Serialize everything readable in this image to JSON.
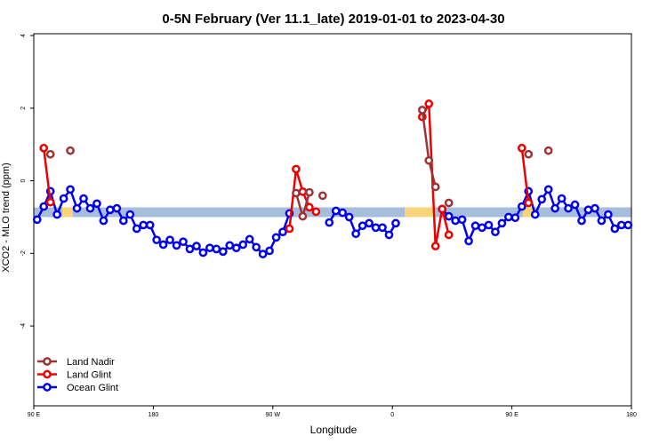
{
  "chart_data": {
    "type": "line",
    "title": "0-5N February (Ver 11.1_late)   2019-01-01 to 2023-04-30",
    "x_label": "Longitude",
    "y_label": "XCO2 - MLO trend (ppm)",
    "xlim": [
      90,
      540
    ],
    "ylim": [
      -6.2,
      4.05
    ],
    "xticks": [
      {
        "value": 90,
        "label": "90 E"
      },
      180,
      {
        "value": 270,
        "label": "90 W"
      },
      {
        "value": 360,
        "label": "0"
      },
      {
        "value": 450,
        "label": "90 E"
      },
      {
        "value": 540,
        "label": "180"
      }
    ],
    "yticks": [
      -4,
      -2,
      0,
      2,
      4
    ],
    "legend": "bottomleft",
    "x": [
      92.5,
      97.5,
      102.5,
      107.5,
      112.5,
      117.5,
      122.5,
      127.5,
      132.5,
      137.5,
      142.5,
      147.5,
      152.5,
      157.5,
      162.5,
      167.5,
      172.5,
      177.5,
      182.5,
      187.5,
      192.5,
      197.5,
      202.5,
      207.5,
      212.5,
      217.5,
      222.5,
      227.5,
      232.5,
      237.5,
      242.5,
      247.5,
      252.5,
      257.5,
      262.5,
      267.5,
      272.5,
      277.5,
      282.5,
      287.5,
      292.5,
      297.5,
      302.5,
      307.5,
      312.5,
      317.5,
      322.5,
      327.5,
      332.5,
      337.5,
      342.5,
      347.5,
      352.5,
      357.5,
      362.5,
      367.5,
      372.5,
      377.5,
      382.5,
      387.5,
      392.5,
      397.5,
      402.5,
      407.5,
      412.5,
      417.5,
      422.5,
      427.5,
      432.5,
      437.5,
      442.5,
      447.5,
      452.5,
      457.5,
      462.5,
      467.5,
      472.5,
      477.5,
      482.5,
      487.5,
      492.5,
      497.5,
      502.5,
      507.5,
      512.5,
      517.5,
      522.5,
      527.5,
      532.5,
      537.5
    ],
    "series": [
      {
        "name": "Land Nadir",
        "color": "#9b3535",
        "values": [
          null,
          null,
          0.73,
          null,
          null,
          0.83,
          null,
          null,
          null,
          null,
          null,
          null,
          null,
          null,
          null,
          null,
          null,
          null,
          null,
          null,
          null,
          null,
          null,
          null,
          null,
          null,
          null,
          null,
          null,
          null,
          null,
          null,
          null,
          null,
          null,
          null,
          null,
          null,
          null,
          -0.34,
          -0.98,
          -0.32,
          null,
          -0.41,
          null,
          null,
          null,
          null,
          null,
          null,
          null,
          null,
          null,
          null,
          null,
          null,
          null,
          null,
          1.95,
          0.56,
          -0.17,
          null,
          -0.61,
          null,
          null,
          null,
          null,
          null,
          null,
          null,
          null,
          null,
          null,
          null,
          0.73,
          null,
          null,
          0.83,
          null,
          null,
          null,
          null,
          null,
          null,
          null,
          null,
          null,
          null,
          null,
          null
        ]
      },
      {
        "name": "Land Glint",
        "color": "#ee0000",
        "values": [
          null,
          0.9,
          -0.59,
          null,
          null,
          null,
          null,
          null,
          null,
          null,
          null,
          null,
          null,
          null,
          null,
          null,
          null,
          null,
          null,
          null,
          null,
          null,
          null,
          null,
          null,
          null,
          null,
          null,
          null,
          null,
          null,
          null,
          null,
          null,
          null,
          null,
          null,
          null,
          -1.32,
          0.32,
          -0.3,
          -0.73,
          -0.85,
          null,
          null,
          null,
          null,
          null,
          null,
          null,
          null,
          null,
          null,
          null,
          null,
          null,
          null,
          null,
          1.76,
          2.12,
          -1.8,
          -0.78,
          -1.49,
          null,
          null,
          null,
          null,
          null,
          null,
          null,
          null,
          null,
          null,
          0.9,
          -0.61,
          null,
          null,
          null,
          null,
          null,
          null,
          null,
          null,
          null,
          null,
          null,
          null,
          null,
          null,
          null
        ]
      },
      {
        "name": "Ocean Glint",
        "color": "#0000ee",
        "values": [
          -1.07,
          -0.71,
          -0.29,
          -0.93,
          -0.49,
          -0.24,
          -0.76,
          -0.49,
          -0.76,
          -0.63,
          -1.1,
          -0.8,
          -0.76,
          -1.1,
          -0.93,
          -1.32,
          -1.22,
          -1.22,
          -1.63,
          -1.76,
          -1.63,
          -1.78,
          -1.68,
          -1.88,
          -1.8,
          -1.98,
          -1.85,
          -1.88,
          -1.95,
          -1.78,
          -1.85,
          -1.76,
          -1.61,
          -1.83,
          -2.02,
          -1.93,
          -1.56,
          -1.41,
          -0.9,
          null,
          null,
          null,
          null,
          null,
          -1.15,
          -0.83,
          -0.88,
          -1.0,
          -1.46,
          -1.24,
          -1.17,
          -1.29,
          -1.29,
          -1.49,
          -1.17,
          null,
          null,
          null,
          null,
          null,
          null,
          -0.78,
          -0.98,
          -1.1,
          -1.07,
          -1.66,
          -1.24,
          -1.29,
          -1.22,
          -1.41,
          -1.17,
          -1.0,
          -1.02,
          -0.71,
          -0.29,
          -0.93,
          -0.51,
          -0.24,
          -0.76,
          -0.49,
          -0.76,
          -0.66,
          -1.1,
          -0.8,
          -0.76,
          -1.1,
          -0.93,
          -1.32,
          -1.22,
          -1.22
        ]
      }
    ]
  }
}
